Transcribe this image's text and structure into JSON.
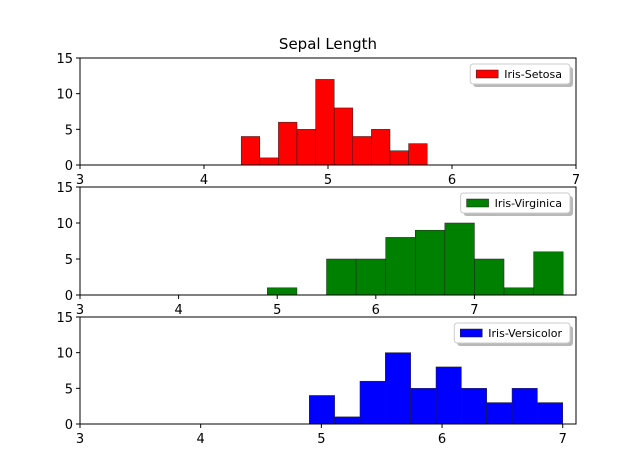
{
  "chart_data": [
    {
      "type": "histogram",
      "title": "Sepal Length",
      "bins": [
        4.3,
        4.45,
        4.6,
        4.75,
        4.9,
        5.05,
        5.2,
        5.35,
        5.5,
        5.65,
        5.8
      ],
      "series": [
        {
          "name": "Iris-Setosa",
          "color": "#ff0000",
          "values": [
            4,
            1,
            6,
            5,
            12,
            8,
            4,
            5,
            2,
            3
          ]
        }
      ],
      "xlim": [
        3,
        7
      ],
      "xticks": [
        3,
        4,
        5,
        6,
        7
      ],
      "ylim": [
        0,
        15
      ],
      "yticks": [
        0,
        5,
        10,
        15
      ],
      "legend": "upper right"
    },
    {
      "type": "histogram",
      "bins": [
        4.9,
        5.2,
        5.5,
        5.8,
        6.1,
        6.4,
        6.7,
        7.0,
        7.3,
        7.6,
        7.9
      ],
      "series": [
        {
          "name": "Iris-Virginica",
          "color": "#008000",
          "values": [
            1,
            0,
            5,
            5,
            8,
            9,
            10,
            5,
            1,
            6
          ]
        }
      ],
      "xlim": [
        3,
        8.03
      ],
      "xticks": [
        3,
        4,
        5,
        6,
        7
      ],
      "ylim": [
        0,
        15
      ],
      "yticks": [
        0,
        5,
        10,
        15
      ],
      "legend": "upper right"
    },
    {
      "type": "histogram",
      "bins": [
        4.9,
        5.11,
        5.32,
        5.53,
        5.74,
        5.95,
        6.16,
        6.37,
        6.58,
        6.79,
        7.0
      ],
      "series": [
        {
          "name": "Iris-Versicolor",
          "color": "#0000ff",
          "values": [
            4,
            1,
            6,
            10,
            5,
            8,
            5,
            3,
            5,
            3
          ]
        }
      ],
      "xlim": [
        3,
        7.11
      ],
      "xticks": [
        3,
        4,
        5,
        6,
        7
      ],
      "ylim": [
        0,
        15
      ],
      "yticks": [
        0,
        5,
        10,
        15
      ],
      "legend": "upper right"
    }
  ]
}
